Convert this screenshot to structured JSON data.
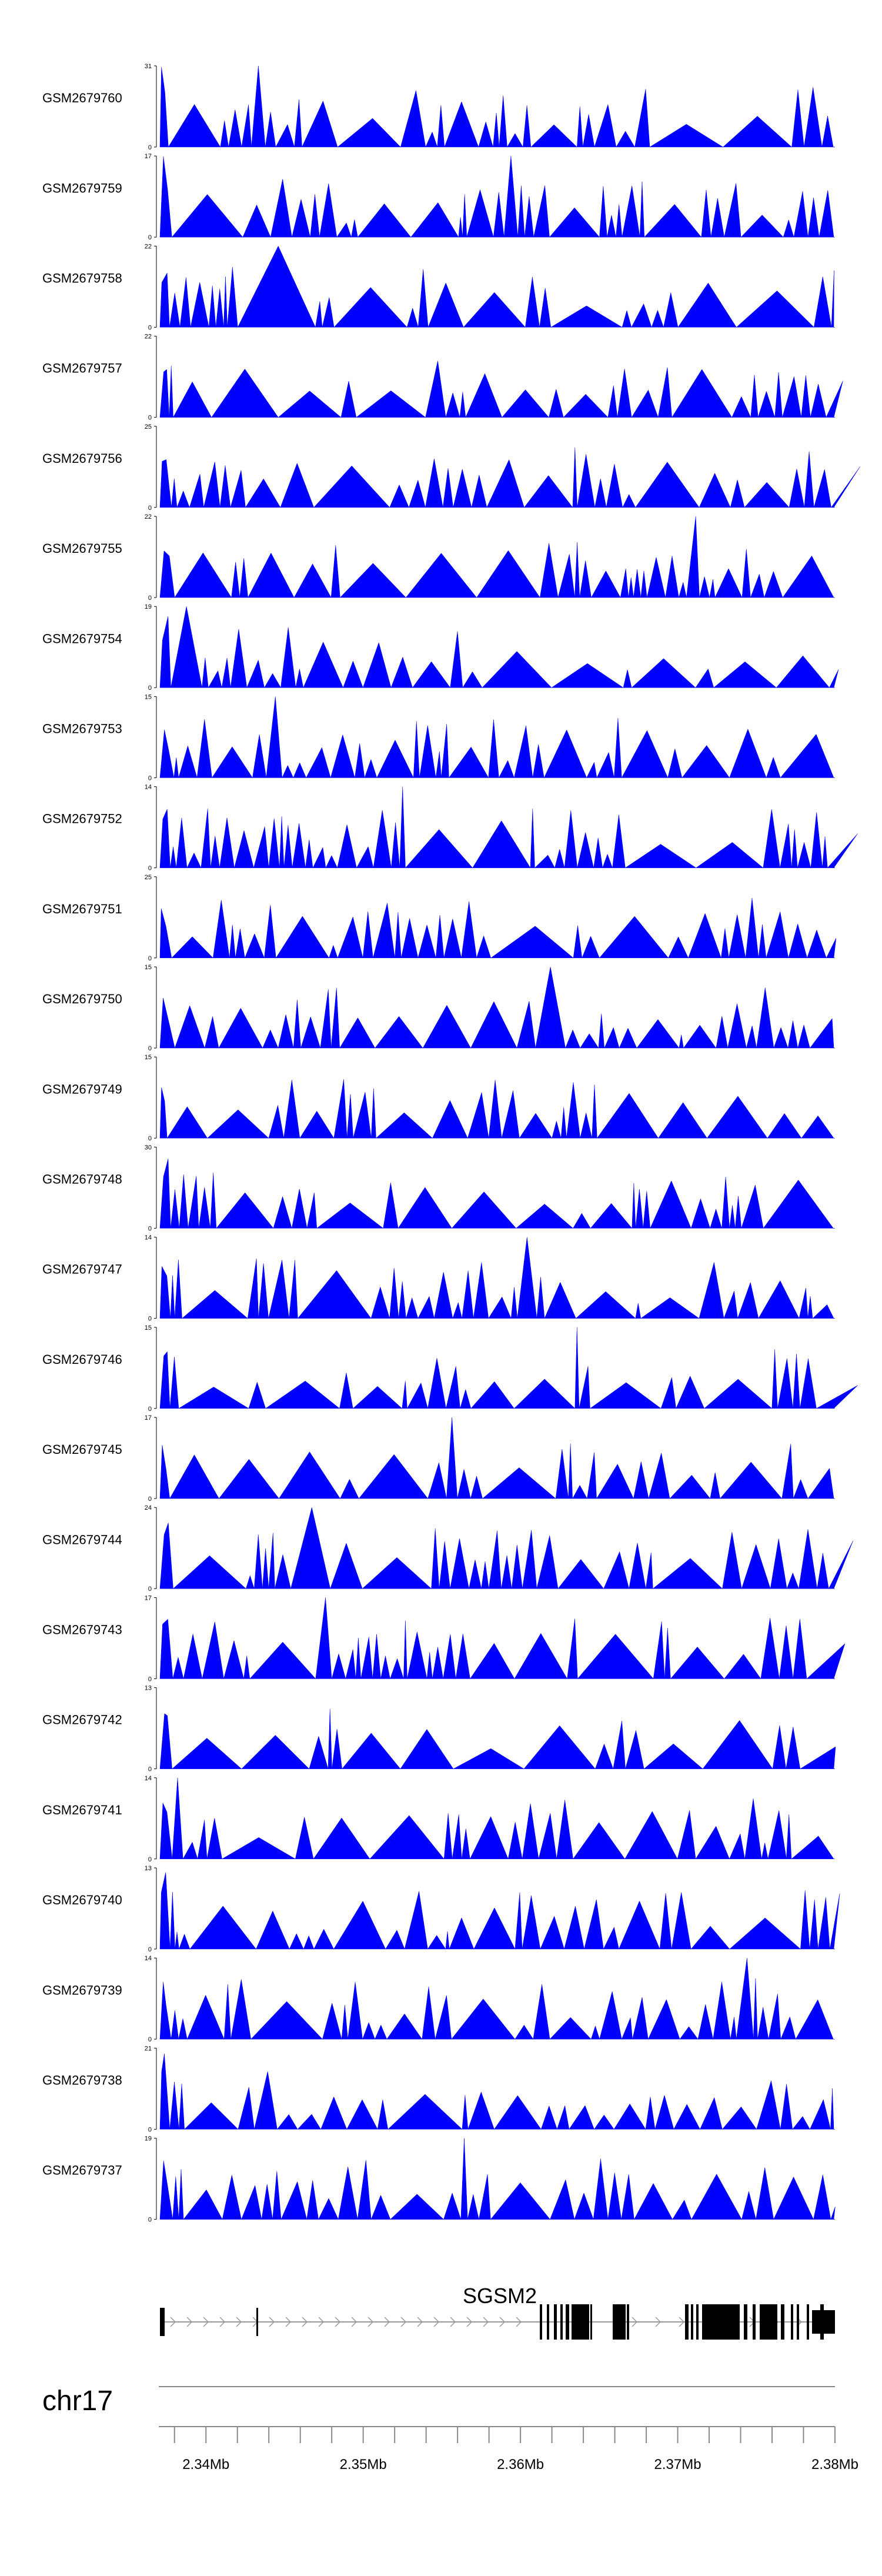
{
  "chart_data": {
    "type": "area",
    "chromosome": "chr17",
    "region_kb": [
      2337,
      2380
    ],
    "gene": {
      "name": "SGSM2",
      "strand": "+"
    },
    "axis": {
      "tick_labels": [
        "2.34Mb",
        "2.35Mb",
        "2.36Mb",
        "2.37Mb",
        "2.38Mb"
      ],
      "label_positions_kb": [
        2340,
        2350,
        2360,
        2370,
        2380
      ]
    },
    "series_color": "#0000ff",
    "tracks": [
      {
        "name": "GSM2679760",
        "ymax": 31,
        "seed": 60
      },
      {
        "name": "GSM2679759",
        "ymax": 17,
        "seed": 59
      },
      {
        "name": "GSM2679758",
        "ymax": 22,
        "seed": 58
      },
      {
        "name": "GSM2679757",
        "ymax": 22,
        "seed": 57
      },
      {
        "name": "GSM2679756",
        "ymax": 25,
        "seed": 56
      },
      {
        "name": "GSM2679755",
        "ymax": 22,
        "seed": 55
      },
      {
        "name": "GSM2679754",
        "ymax": 19,
        "seed": 54
      },
      {
        "name": "GSM2679753",
        "ymax": 15,
        "seed": 53
      },
      {
        "name": "GSM2679752",
        "ymax": 14,
        "seed": 52
      },
      {
        "name": "GSM2679751",
        "ymax": 25,
        "seed": 51
      },
      {
        "name": "GSM2679750",
        "ymax": 15,
        "seed": 50
      },
      {
        "name": "GSM2679749",
        "ymax": 15,
        "seed": 49
      },
      {
        "name": "GSM2679748",
        "ymax": 30,
        "seed": 48
      },
      {
        "name": "GSM2679747",
        "ymax": 14,
        "seed": 47
      },
      {
        "name": "GSM2679746",
        "ymax": 15,
        "seed": 46
      },
      {
        "name": "GSM2679745",
        "ymax": 17,
        "seed": 45
      },
      {
        "name": "GSM2679744",
        "ymax": 24,
        "seed": 44
      },
      {
        "name": "GSM2679743",
        "ymax": 17,
        "seed": 43
      },
      {
        "name": "GSM2679742",
        "ymax": 13,
        "seed": 42
      },
      {
        "name": "GSM2679741",
        "ymax": 14,
        "seed": 41
      },
      {
        "name": "GSM2679740",
        "ymax": 13,
        "seed": 40
      },
      {
        "name": "GSM2679739",
        "ymax": 14,
        "seed": 39
      },
      {
        "name": "GSM2679738",
        "ymax": 21,
        "seed": 38
      },
      {
        "name": "GSM2679737",
        "ymax": 19,
        "seed": 37
      }
    ]
  }
}
